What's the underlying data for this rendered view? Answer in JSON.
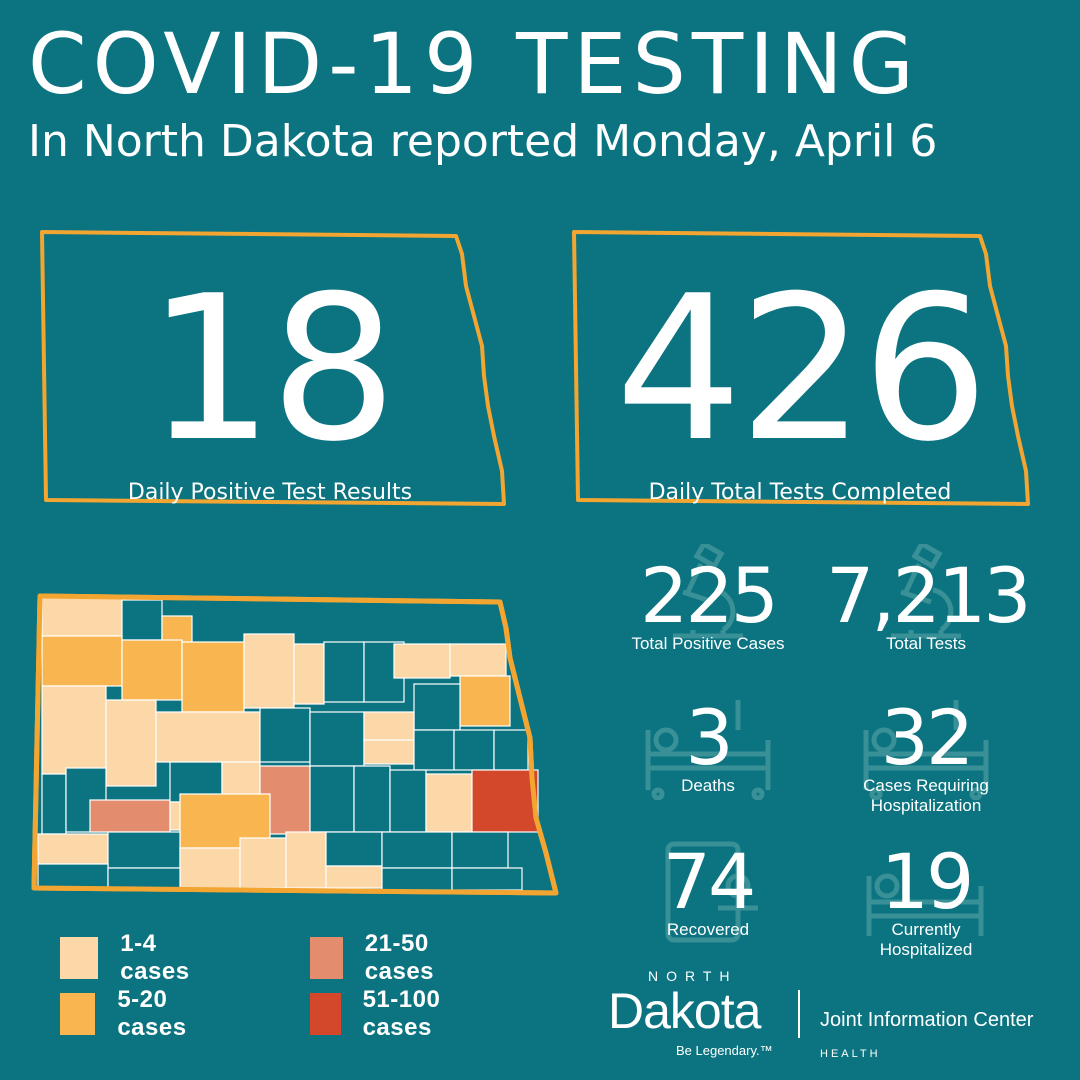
{
  "header": {
    "title": "COVID-19 TESTING",
    "subtitle": "In North Dakota reported Monday, April 6"
  },
  "headline_stats": [
    {
      "value": "18",
      "label": "Daily Positive Test Results"
    },
    {
      "value": "426",
      "label": "Daily Total Tests Completed"
    }
  ],
  "stats": [
    {
      "value": "225",
      "label": "Total Positive Cases",
      "icon": "microscope-icon"
    },
    {
      "value": "7,213",
      "label": "Total Tests",
      "icon": "microscope-icon"
    },
    {
      "value": "3",
      "label": "Deaths",
      "icon": "hospital-bed-icon"
    },
    {
      "value": "32",
      "label": "Cases Requiring Hospitalization",
      "icon": "hospital-bed-icon"
    },
    {
      "value": "74",
      "label": "Recovered",
      "icon": "recovered-person-icon"
    },
    {
      "value": "19",
      "label": "Currently Hospitalized",
      "icon": "hospital-bed-icon"
    }
  ],
  "legend": [
    {
      "label": "1-4 cases",
      "color": "#fcd8a8"
    },
    {
      "label": "21-50 cases",
      "color": "#e48d6e"
    },
    {
      "label": "5-20 cases",
      "color": "#f9b650"
    },
    {
      "label": "51-100 cases",
      "color": "#d3472a"
    }
  ],
  "colors": {
    "background": "#0b7480",
    "outline": "#f3a532",
    "no_cases": "#0b7480",
    "county_border": "#ffffff"
  },
  "logo": {
    "north": "NORTH",
    "dakota": "Dakota",
    "tagline": "Be Legendary.™",
    "org": "Joint Information Center",
    "dept": "HEALTH"
  }
}
